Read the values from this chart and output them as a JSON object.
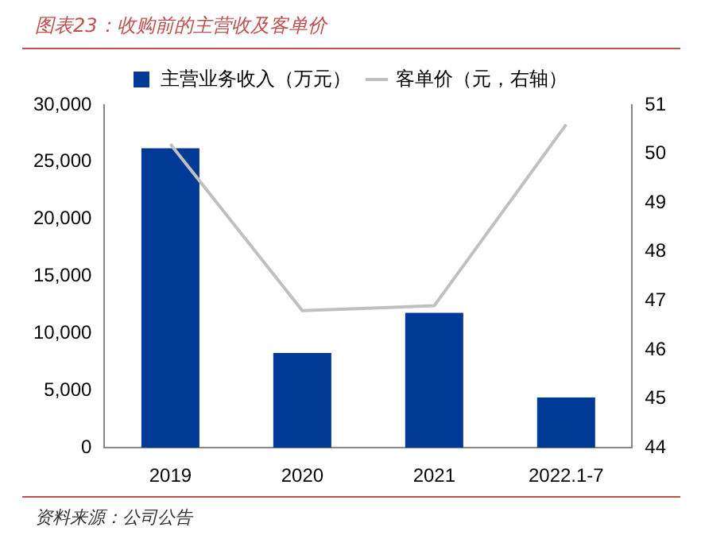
{
  "chart_data": {
    "type": "bar",
    "title": "图表23：收购前的主营收及客单价",
    "categories": [
      "2019",
      "2020",
      "2021",
      "2022.1-7"
    ],
    "series": [
      {
        "name": "主营业务收入（万元）",
        "color": "#003a96",
        "values": [
          26200,
          8300,
          11800,
          4400
        ]
      },
      {
        "name": "客单价（元，右轴）",
        "type": "line",
        "axis": "y2",
        "color": "#c0c0c0",
        "values": [
          50.2,
          46.8,
          46.9,
          50.6
        ]
      }
    ],
    "ylim": [
      0,
      30000
    ],
    "yticks": [
      0,
      {
        "value": 5000,
        "label": "5,000"
      },
      {
        "value": 10000,
        "label": "10,000"
      },
      {
        "value": 15000,
        "label": "15,000"
      },
      {
        "value": 20000,
        "label": "20,000"
      },
      {
        "value": 25000,
        "label": "25,000"
      },
      {
        "value": 30000,
        "label": "30,000"
      }
    ],
    "y2lim": [
      44,
      51
    ],
    "y2ticks": [
      44,
      45,
      46,
      47,
      48,
      49,
      50,
      51
    ],
    "grid": false,
    "legend": "top",
    "marker": "none",
    "annotations": [
      "资料来源：公司公告"
    ]
  }
}
